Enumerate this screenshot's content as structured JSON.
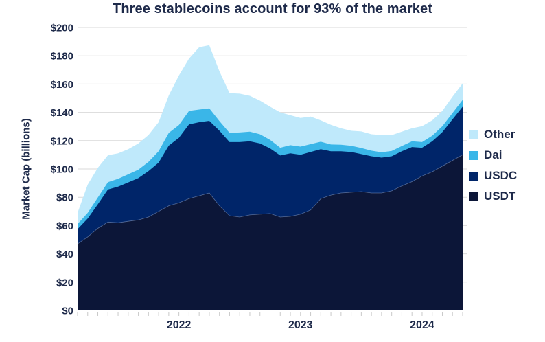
{
  "title": {
    "text": "Three stablecoins account for 93% of the market"
  },
  "y_axis": {
    "title": "Market Cap (billions)",
    "tick_labels": [
      "$0",
      "$20",
      "$40",
      "$60",
      "$80",
      "$100",
      "$120",
      "$140",
      "$160",
      "$180",
      "$200"
    ]
  },
  "x_axis": {
    "tick_labels": [
      "2022",
      "2023",
      "2024"
    ]
  },
  "legend": {
    "items": [
      {
        "label": "Other",
        "color": "#bfe9fb"
      },
      {
        "label": "Dai",
        "color": "#3ab6e8"
      },
      {
        "label": "USDC",
        "color": "#002569"
      },
      {
        "label": "USDT",
        "color": "#0c1638"
      }
    ]
  },
  "colors": {
    "text": "#1e2a4a",
    "gridline": "#d9d9d9",
    "minor_tick": "#c9c9c9",
    "usdt_boundary_line": "rgba(180,205,245,0.45)",
    "background": "#ffffff"
  },
  "chart_data": {
    "type": "area",
    "stacked": true,
    "title": "Three stablecoins account for 93% of the market",
    "xlabel": "",
    "ylabel": "Market Cap (billions)",
    "ylim": [
      0,
      200
    ],
    "y_tick_step": 20,
    "grid": "horizontal",
    "legend_position": "right",
    "x": [
      "Mar 2021",
      "Apr 2021",
      "May 2021",
      "Jun 2021",
      "Jul 2021",
      "Aug 2021",
      "Sep 2021",
      "Oct 2021",
      "Nov 2021",
      "Dec 2021",
      "Jan 2022",
      "Feb 2022",
      "Mar 2022",
      "Apr 2022",
      "May 2022",
      "Jun 2022",
      "Jul 2022",
      "Aug 2022",
      "Sep 2022",
      "Oct 2022",
      "Nov 2022",
      "Dec 2022",
      "Jan 2023",
      "Feb 2023",
      "Mar 2023",
      "Apr 2023",
      "May 2023",
      "Jun 2023",
      "Jul 2023",
      "Aug 2023",
      "Sep 2023",
      "Oct 2023",
      "Nov 2023",
      "Dec 2023",
      "Jan 2024",
      "Feb 2024",
      "Mar 2024",
      "Apr 2024",
      "May 2024"
    ],
    "x_year_ticks": [
      {
        "label": "2022",
        "index": 10
      },
      {
        "label": "2023",
        "index": 22
      },
      {
        "label": "2024",
        "index": 34
      }
    ],
    "series": [
      {
        "name": "USDT",
        "color": "#0c1638",
        "values": [
          47,
          52,
          58,
          62.5,
          62,
          63,
          64,
          66,
          70,
          74,
          76,
          79,
          81,
          83,
          74,
          67,
          66,
          67.5,
          68,
          68.5,
          66,
          66.5,
          68,
          71,
          79,
          81.5,
          83,
          83.5,
          84,
          83,
          83,
          84.5,
          88,
          91,
          95,
          98,
          102,
          106,
          110
        ]
      },
      {
        "name": "USDC",
        "color": "#002569",
        "values": [
          10.5,
          13,
          17,
          23,
          25.5,
          27.5,
          29.5,
          32.5,
          34.5,
          42.5,
          46,
          52.5,
          52,
          51,
          53,
          52,
          53,
          52,
          50,
          46,
          43.5,
          44.5,
          42,
          41,
          35,
          31,
          29.5,
          28.5,
          26.5,
          26,
          25,
          24.5,
          24.5,
          24.5,
          20,
          21.5,
          24,
          29,
          34
        ]
      },
      {
        "name": "Dai",
        "color": "#3ab6e8",
        "values": [
          3.5,
          4,
          4.8,
          5.2,
          5.5,
          5.7,
          6,
          6.5,
          8,
          9,
          9,
          9.5,
          9,
          8.8,
          6.8,
          6.5,
          6.8,
          6.8,
          6.5,
          6,
          5.5,
          5.8,
          5.8,
          5.5,
          5.2,
          4.8,
          4.6,
          4.4,
          4.3,
          3.9,
          3.8,
          3.7,
          3.7,
          4,
          4,
          4,
          4.2,
          4.5,
          4.8
        ]
      },
      {
        "name": "Other",
        "color": "#bfe9fb",
        "values": [
          8,
          20,
          21,
          19,
          18,
          17.8,
          18.5,
          19,
          20.5,
          26.5,
          35,
          37,
          44,
          44.7,
          35.2,
          28.1,
          27.4,
          25.4,
          23.8,
          23.5,
          25,
          21.2,
          20.2,
          19.5,
          15.1,
          13.9,
          11.7,
          10.6,
          11.7,
          11.6,
          12.2,
          11.2,
          10.1,
          9.3,
          11.2,
          10.8,
          10.8,
          11.5,
          11.7
        ]
      }
    ]
  }
}
